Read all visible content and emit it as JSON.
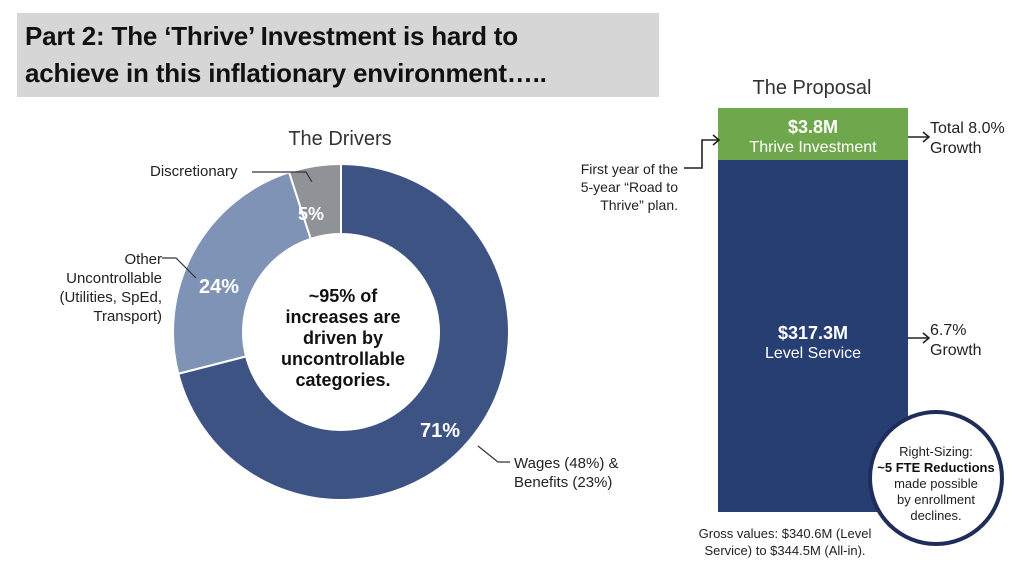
{
  "title": {
    "line1": "Part 2:  The ‘Thrive’ Investment is hard to",
    "line2": "achieve in this inflationary environment….."
  },
  "colors": {
    "banner": "#d6d6d6",
    "wages": "#3c5384",
    "other": "#7f93b6",
    "discretionary": "#8f9297",
    "level_service": "#273e72",
    "thrive": "#6fa84c",
    "callout_ring": "#1f2d5a"
  },
  "chart_data": [
    {
      "type": "pie",
      "title": "The Drivers",
      "center_text": [
        "~95% of",
        "increases are",
        "driven by",
        "uncontrollable",
        "categories."
      ],
      "slices": [
        {
          "key": "wages",
          "value": 71,
          "label": "71%",
          "legend": [
            "Wages (48%) &",
            "Benefits (23%)"
          ]
        },
        {
          "key": "other",
          "value": 24,
          "label": "24%",
          "legend": [
            "Other",
            "Uncontrollable",
            "(Utilities, SpEd,",
            "Transport)"
          ]
        },
        {
          "key": "discretionary",
          "value": 5,
          "label": "5%",
          "legend": [
            "Discretionary"
          ]
        }
      ]
    },
    {
      "type": "bar",
      "title": "The Proposal",
      "segments": [
        {
          "key": "level_service",
          "value": 317.3,
          "value_label": "$317.3M",
          "name": "Level Service",
          "side_note": [
            "6.7%",
            "Growth"
          ]
        },
        {
          "key": "thrive",
          "value": 3.8,
          "value_label": "$3.8M",
          "name": "Thrive Investment",
          "side_note": [
            "Total 8.0%",
            "Growth"
          ]
        }
      ],
      "left_note": [
        "First year of the",
        "5-year “Road to",
        "Thrive” plan."
      ],
      "footnote": [
        "Gross values: $340.6M (Level",
        "Service) to $344.5M (All-in)."
      ],
      "callout": {
        "line1": "Right-Sizing:",
        "bold": "~5 FTE Reductions",
        "rest": [
          "made possible",
          "by enrollment",
          "declines."
        ]
      }
    }
  ]
}
